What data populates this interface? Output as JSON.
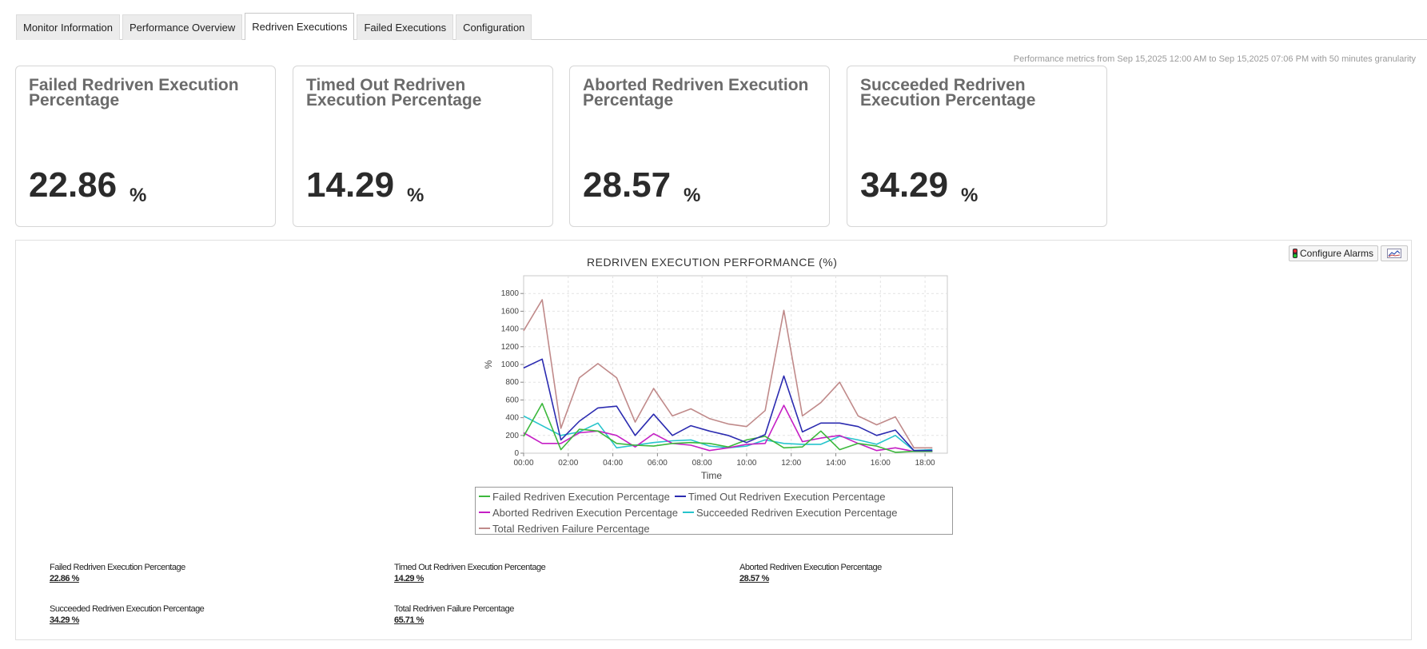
{
  "tabs": [
    {
      "label": "Monitor Information"
    },
    {
      "label": "Performance Overview"
    },
    {
      "label": "Redriven Executions"
    },
    {
      "label": "Failed Executions"
    },
    {
      "label": "Configuration"
    }
  ],
  "metrics_info": "Performance metrics from Sep 15,2025 12:00 AM to Sep 15,2025 07:06 PM with 50 minutes granularity",
  "cards": [
    {
      "title": "Failed Redriven Execution Percentage",
      "value": "22.86",
      "unit": "%"
    },
    {
      "title": "Timed Out Redriven Execution Percentage",
      "value": "14.29",
      "unit": "%"
    },
    {
      "title": "Aborted Redriven Execution Percentage",
      "value": "28.57",
      "unit": "%"
    },
    {
      "title": "Succeeded Redriven Execution Percentage",
      "value": "34.29",
      "unit": "%"
    }
  ],
  "toolbar": {
    "configure_alarms": "Configure Alarms",
    "export_icon": "chart-export-icon"
  },
  "chart_data": {
    "type": "line",
    "title": "REDRIVEN EXECUTION PERFORMANCE (%)",
    "xlabel": "Time",
    "ylabel": "%",
    "x_tick_labels": [
      "00:00",
      "02:00",
      "04:00",
      "06:00",
      "08:00",
      "10:00",
      "12:00",
      "14:00",
      "16:00",
      "18:00"
    ],
    "x": [
      0,
      0.83,
      1.67,
      2.5,
      3.33,
      4.17,
      5,
      5.83,
      6.67,
      7.5,
      8.33,
      9.17,
      10,
      10.83,
      11.67,
      12.5,
      13.33,
      14.17,
      15,
      15.83,
      16.67,
      17.5,
      18.33
    ],
    "xlim": [
      0,
      19
    ],
    "ylim": [
      0,
      2000
    ],
    "y_ticks": [
      0,
      200,
      400,
      600,
      800,
      1000,
      1200,
      1400,
      1600,
      1800
    ],
    "series": [
      {
        "name": "Failed Redriven Execution Percentage",
        "color": "#3cb83c",
        "values": [
          190,
          560,
          40,
          270,
          250,
          110,
          90,
          80,
          110,
          120,
          110,
          70,
          150,
          190,
          60,
          70,
          250,
          40,
          110,
          80,
          10,
          20,
          20
        ]
      },
      {
        "name": "Timed Out Redriven Execution Percentage",
        "color": "#2b2bb0",
        "values": [
          960,
          1060,
          150,
          360,
          510,
          530,
          200,
          440,
          200,
          310,
          250,
          200,
          120,
          210,
          870,
          240,
          340,
          340,
          300,
          200,
          260,
          30,
          30
        ]
      },
      {
        "name": "Aborted Redriven Execution Percentage",
        "color": "#c51fc5",
        "values": [
          230,
          110,
          110,
          230,
          250,
          200,
          70,
          220,
          110,
          90,
          30,
          60,
          100,
          110,
          540,
          130,
          170,
          200,
          110,
          30,
          60,
          20,
          20
        ]
      },
      {
        "name": "Succeeded Redriven Execution Percentage",
        "color": "#26c4cc",
        "values": [
          420,
          310,
          200,
          240,
          340,
          60,
          90,
          120,
          140,
          150,
          80,
          60,
          80,
          150,
          110,
          100,
          100,
          190,
          150,
          100,
          200,
          30,
          40
        ]
      },
      {
        "name": "Total Redriven Failure Percentage",
        "color": "#c08a8a",
        "values": [
          1380,
          1730,
          280,
          850,
          1010,
          850,
          350,
          730,
          420,
          500,
          390,
          330,
          300,
          480,
          1610,
          420,
          570,
          800,
          420,
          320,
          410,
          60,
          60
        ]
      }
    ]
  },
  "summary": [
    {
      "label": "Failed Redriven Execution Percentage",
      "value": "22.86 %"
    },
    {
      "label": "Timed Out Redriven Execution Percentage",
      "value": "14.29 %"
    },
    {
      "label": "Aborted Redriven Execution Percentage",
      "value": "28.57 %"
    },
    {
      "label": "Succeeded Redriven Execution Percentage",
      "value": "34.29 %"
    },
    {
      "label": "Total Redriven Failure Percentage",
      "value": "65.71 %"
    }
  ]
}
